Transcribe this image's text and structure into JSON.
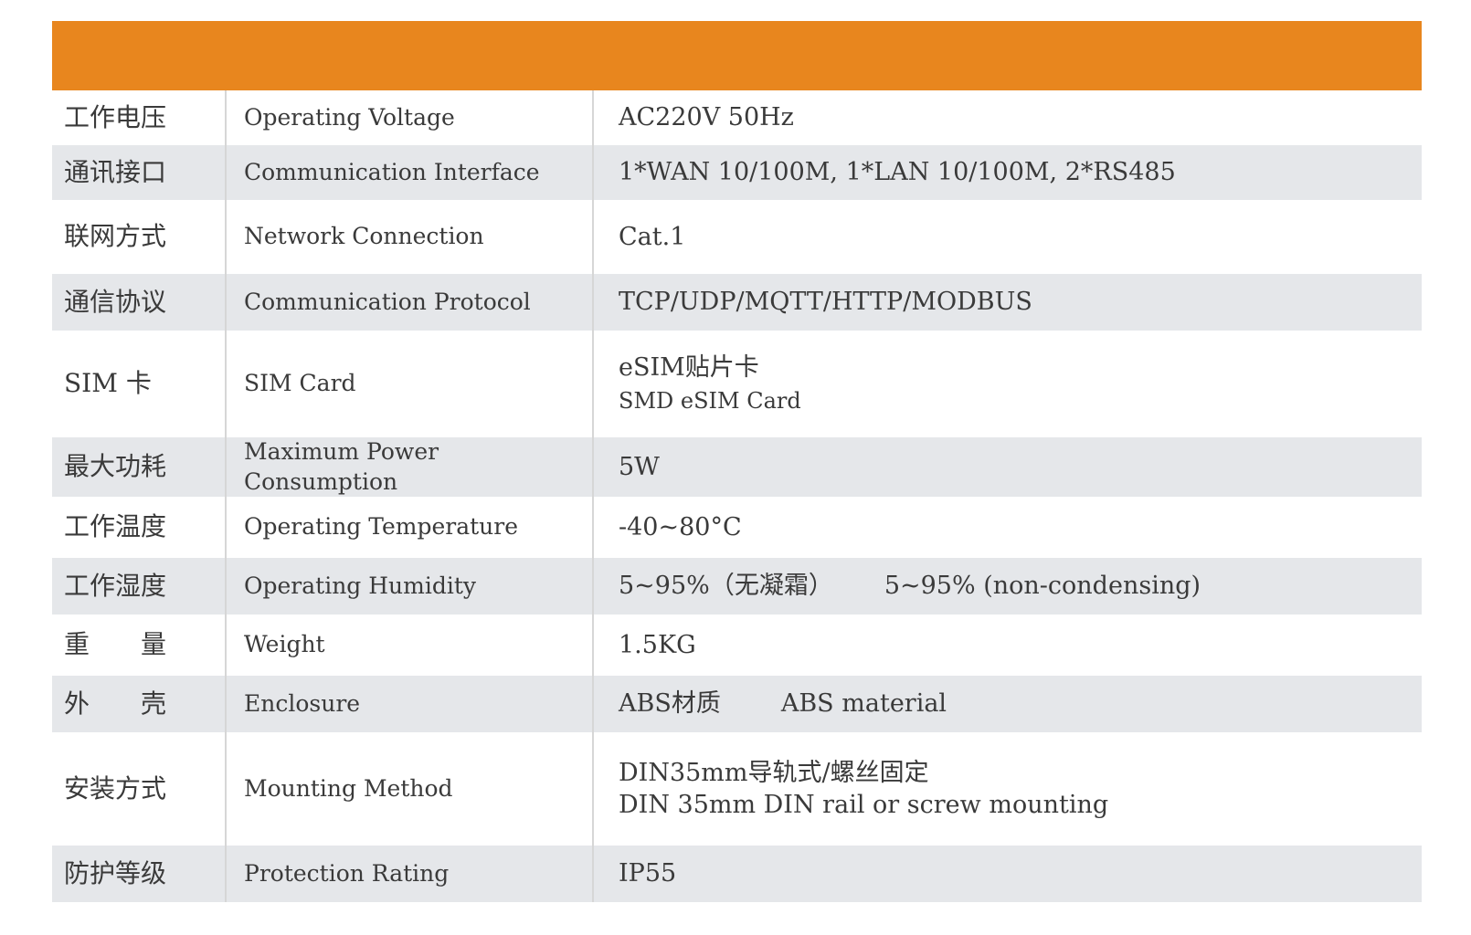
{
  "spec_table": {
    "rows": [
      {
        "cn": "工作电压",
        "en": "Operating Voltage",
        "value": "AC220V 50Hz"
      },
      {
        "cn": "通讯接口",
        "en": "Communication Interface",
        "value": "1*WAN 10/100M, 1*LAN 10/100M, 2*RS485"
      },
      {
        "cn": "联网方式",
        "en": "Network Connection",
        "value": "Cat.1"
      },
      {
        "cn": "通信协议",
        "en": "Communication Protocol",
        "value": "TCP/UDP/MQTT/HTTP/MODBUS"
      },
      {
        "cn": "SIM 卡",
        "en": "SIM Card",
        "value": "eSIM贴片卡",
        "value_sub": "SMD eSIM Card"
      },
      {
        "cn": "最大功耗",
        "en": "Maximum Power Consumption",
        "value": "5W"
      },
      {
        "cn": "工作温度",
        "en": "Operating Temperature",
        "value": "-40~80°C"
      },
      {
        "cn": "工作湿度",
        "en": "Operating Humidity",
        "value": "5~95%（无凝霜）",
        "value_en": "5~95% (non-condensing)"
      },
      {
        "cn": "重　　量",
        "en": "Weight",
        "value": "1.5KG"
      },
      {
        "cn": "外　　壳",
        "en": "Enclosure",
        "value": "ABS材质",
        "value_en": "ABS material"
      },
      {
        "cn": "安装方式",
        "en": "Mounting Method",
        "value": "DIN35mm导轨式/螺丝固定",
        "value_sub": "DIN 35mm DIN rail or screw mounting"
      },
      {
        "cn": "防护等级",
        "en": "Protection Rating",
        "value": "IP55"
      }
    ]
  },
  "colors": {
    "header_bar": "#e8861e",
    "row_alt": "#e5e7ea",
    "text": "#3a3a3a"
  }
}
